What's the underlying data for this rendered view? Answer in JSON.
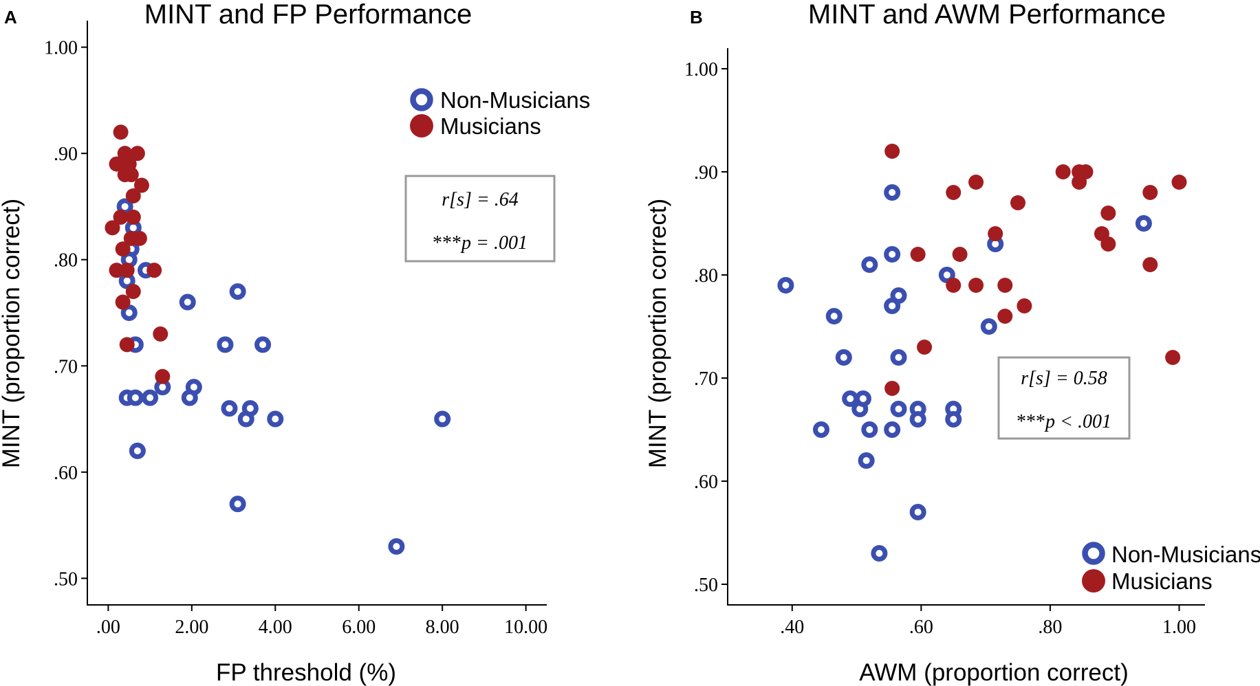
{
  "chart_data": [
    {
      "type": "scatter",
      "panel_label": "A",
      "title": "MINT and FP Performance",
      "xlabel": "FP threshold (%)",
      "ylabel": "MINT (proportion correct)",
      "xlim": [
        -0.5,
        10.5
      ],
      "ylim": [
        0.475,
        1.025
      ],
      "xticks": [
        0,
        2,
        4,
        6,
        8,
        10
      ],
      "xtick_labels": [
        ".00",
        "2.00",
        "4.00",
        "6.00",
        "8.00",
        "10.00"
      ],
      "yticks": [
        0.5,
        0.6,
        0.7,
        0.8,
        0.9,
        1.0
      ],
      "ytick_labels": [
        ".50",
        ".60",
        ".70",
        ".80",
        ".90",
        "1.00"
      ],
      "legend": {
        "position": "top-right",
        "entries": [
          "Non-Musicians",
          "Musicians"
        ]
      },
      "annotation": {
        "line1": "r[s] = .64",
        "stars": "***",
        "line2": "p = .001"
      },
      "series": [
        {
          "name": "Non-Musicians",
          "color": "#3a4fb0",
          "marker": "ring",
          "points": [
            [
              0.4,
              0.85
            ],
            [
              0.6,
              0.83
            ],
            [
              0.55,
              0.81
            ],
            [
              0.5,
              0.8
            ],
            [
              0.9,
              0.79
            ],
            [
              0.45,
              0.78
            ],
            [
              0.5,
              0.75
            ],
            [
              0.65,
              0.72
            ],
            [
              0.45,
              0.67
            ],
            [
              0.65,
              0.67
            ],
            [
              1.0,
              0.67
            ],
            [
              1.3,
              0.68
            ],
            [
              0.7,
              0.62
            ],
            [
              1.9,
              0.76
            ],
            [
              3.1,
              0.77
            ],
            [
              2.8,
              0.72
            ],
            [
              3.7,
              0.72
            ],
            [
              2.05,
              0.68
            ],
            [
              1.95,
              0.67
            ],
            [
              2.9,
              0.66
            ],
            [
              3.3,
              0.65
            ],
            [
              3.4,
              0.66
            ],
            [
              4.0,
              0.65
            ],
            [
              3.1,
              0.57
            ],
            [
              6.9,
              0.53
            ],
            [
              8.0,
              0.65
            ]
          ]
        },
        {
          "name": "Musicians",
          "color": "#a31d20",
          "marker": "filled",
          "points": [
            [
              0.3,
              0.92
            ],
            [
              0.4,
              0.9
            ],
            [
              0.7,
              0.9
            ],
            [
              0.2,
              0.89
            ],
            [
              0.5,
              0.89
            ],
            [
              0.4,
              0.88
            ],
            [
              0.55,
              0.88
            ],
            [
              0.8,
              0.87
            ],
            [
              0.6,
              0.86
            ],
            [
              0.3,
              0.84
            ],
            [
              0.6,
              0.84
            ],
            [
              0.1,
              0.83
            ],
            [
              0.55,
              0.82
            ],
            [
              0.75,
              0.82
            ],
            [
              0.35,
              0.81
            ],
            [
              0.2,
              0.79
            ],
            [
              0.45,
              0.79
            ],
            [
              1.1,
              0.79
            ],
            [
              0.6,
              0.77
            ],
            [
              0.35,
              0.76
            ],
            [
              1.25,
              0.73
            ],
            [
              0.45,
              0.72
            ],
            [
              1.3,
              0.69
            ]
          ]
        }
      ]
    },
    {
      "type": "scatter",
      "panel_label": "B",
      "title": "MINT and AWM Performance",
      "xlabel": "AWM (proportion correct)",
      "ylabel": "MINT (proportion correct)",
      "xlim": [
        0.3,
        1.04
      ],
      "ylim": [
        0.48,
        1.02
      ],
      "xticks": [
        0.4,
        0.6,
        0.8,
        1.0
      ],
      "xtick_labels": [
        ".40",
        ".60",
        ".80",
        "1.00"
      ],
      "yticks": [
        0.5,
        0.6,
        0.7,
        0.8,
        0.9,
        1.0
      ],
      "ytick_labels": [
        ".50",
        ".60",
        ".70",
        ".80",
        ".90",
        "1.00"
      ],
      "legend": {
        "position": "bottom-right",
        "entries": [
          "Non-Musicians",
          "Musicians"
        ]
      },
      "annotation": {
        "line1": "r[s] = 0.58",
        "stars": "***",
        "line2": "p < .001"
      },
      "series": [
        {
          "name": "Non-Musicians",
          "color": "#3a4fb0",
          "marker": "ring",
          "points": [
            [
              0.39,
              0.79
            ],
            [
              0.465,
              0.76
            ],
            [
              0.48,
              0.72
            ],
            [
              0.49,
              0.68
            ],
            [
              0.505,
              0.67
            ],
            [
              0.51,
              0.68
            ],
            [
              0.52,
              0.81
            ],
            [
              0.52,
              0.65
            ],
            [
              0.445,
              0.65
            ],
            [
              0.515,
              0.62
            ],
            [
              0.535,
              0.53
            ],
            [
              0.555,
              0.88
            ],
            [
              0.555,
              0.82
            ],
            [
              0.555,
              0.77
            ],
            [
              0.565,
              0.78
            ],
            [
              0.565,
              0.72
            ],
            [
              0.565,
              0.67
            ],
            [
              0.555,
              0.65
            ],
            [
              0.595,
              0.67
            ],
            [
              0.595,
              0.66
            ],
            [
              0.595,
              0.57
            ],
            [
              0.64,
              0.8
            ],
            [
              0.65,
              0.67
            ],
            [
              0.65,
              0.66
            ],
            [
              0.705,
              0.75
            ],
            [
              0.715,
              0.83
            ],
            [
              0.945,
              0.85
            ]
          ]
        },
        {
          "name": "Musicians",
          "color": "#a31d20",
          "marker": "filled",
          "points": [
            [
              0.555,
              0.92
            ],
            [
              0.555,
              0.69
            ],
            [
              0.595,
              0.82
            ],
            [
              0.605,
              0.73
            ],
            [
              0.65,
              0.88
            ],
            [
              0.65,
              0.79
            ],
            [
              0.66,
              0.82
            ],
            [
              0.685,
              0.89
            ],
            [
              0.685,
              0.79
            ],
            [
              0.715,
              0.84
            ],
            [
              0.73,
              0.79
            ],
            [
              0.73,
              0.76
            ],
            [
              0.75,
              0.87
            ],
            [
              0.76,
              0.77
            ],
            [
              0.82,
              0.9
            ],
            [
              0.845,
              0.9
            ],
            [
              0.845,
              0.89
            ],
            [
              0.855,
              0.9
            ],
            [
              0.88,
              0.84
            ],
            [
              0.89,
              0.86
            ],
            [
              0.89,
              0.83
            ],
            [
              0.955,
              0.88
            ],
            [
              0.955,
              0.81
            ],
            [
              0.99,
              0.72
            ],
            [
              1.0,
              0.89
            ]
          ]
        }
      ]
    }
  ]
}
